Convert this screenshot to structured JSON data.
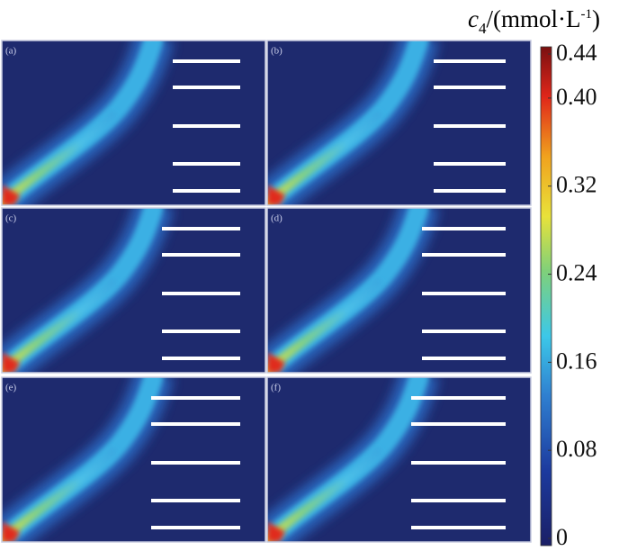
{
  "colorbar": {
    "title": {
      "symbol": "c",
      "subscript": "4",
      "unit": "/(mmol·L",
      "superscript": "-1",
      "close": ")"
    },
    "lim": [
      0,
      0.44
    ],
    "ticks": [
      0,
      0.08,
      0.16,
      0.24,
      0.32,
      {
        "value": 0.4,
        "label": "0.40"
      },
      0.44
    ]
  },
  "panels": [
    {
      "label": "(a)"
    },
    {
      "label": "(b)"
    },
    {
      "label": "(c)"
    },
    {
      "label": "(d)"
    },
    {
      "label": "(e)"
    },
    {
      "label": "(f)"
    }
  ]
}
